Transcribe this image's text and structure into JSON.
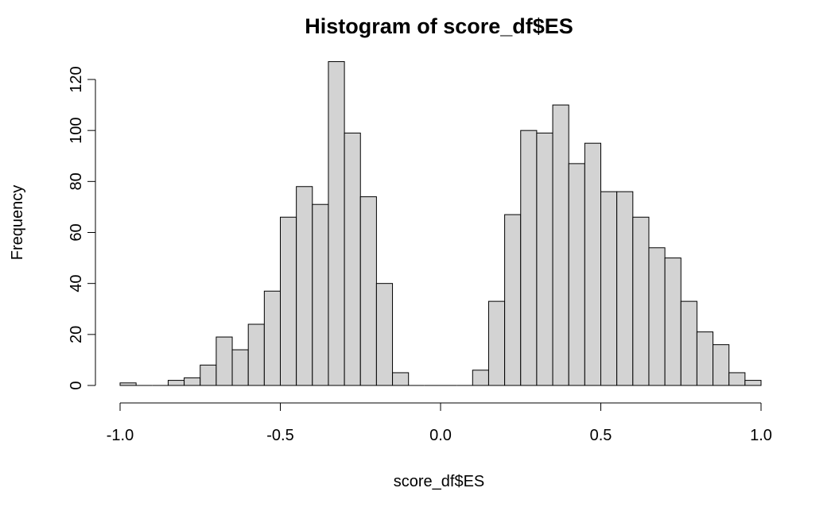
{
  "chart_data": {
    "type": "bar",
    "title": "Histogram of score_df$ES",
    "xlabel": "score_df$ES",
    "ylabel": "Frequency",
    "xlim": [
      -1.0,
      1.0
    ],
    "ylim": [
      0,
      120
    ],
    "bin_width": 0.05,
    "bin_start": -1.0,
    "values": [
      1,
      0,
      0,
      2,
      3,
      8,
      19,
      14,
      24,
      37,
      66,
      78,
      71,
      127,
      99,
      74,
      40,
      5,
      0,
      0,
      0,
      0,
      6,
      33,
      67,
      100,
      99,
      110,
      87,
      95,
      76,
      76,
      66,
      54,
      50,
      33,
      21,
      16,
      5,
      2
    ],
    "x_ticks": [
      -1.0,
      -0.5,
      0.0,
      0.5,
      1.0
    ],
    "x_tick_labels": [
      "-1.0",
      "-0.5",
      "0.0",
      "0.5",
      "1.0"
    ],
    "y_ticks": [
      0,
      20,
      40,
      60,
      80,
      100,
      120
    ],
    "y_tick_labels": [
      "0",
      "20",
      "40",
      "60",
      "80",
      "100",
      "120"
    ],
    "bar_fill": "#d3d3d3",
    "bar_stroke": "#000000",
    "grid": false,
    "legend": "none"
  }
}
